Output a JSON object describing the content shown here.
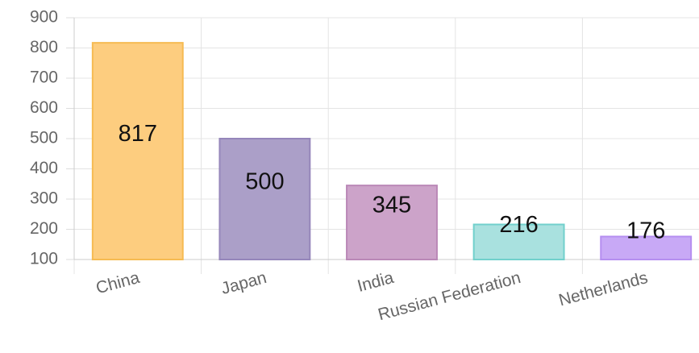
{
  "chart_data": {
    "type": "bar",
    "categories": [
      "China",
      "Japan",
      "India",
      "Russian Federation",
      "Netherlands"
    ],
    "values": [
      817,
      500,
      345,
      216,
      176
    ],
    "colors": [
      "#fdcd7f",
      "#ab9fc8",
      "#cca3c9",
      "#a9e1df",
      "#c8a9f6"
    ],
    "border_colors": [
      "#f6bb52",
      "#9586ba",
      "#ba88b7",
      "#71d0cc",
      "#b58ef0"
    ],
    "ylim": [
      100,
      900
    ],
    "yticks": [
      100,
      200,
      300,
      400,
      500,
      600,
      700,
      800,
      900
    ],
    "grid": true
  }
}
